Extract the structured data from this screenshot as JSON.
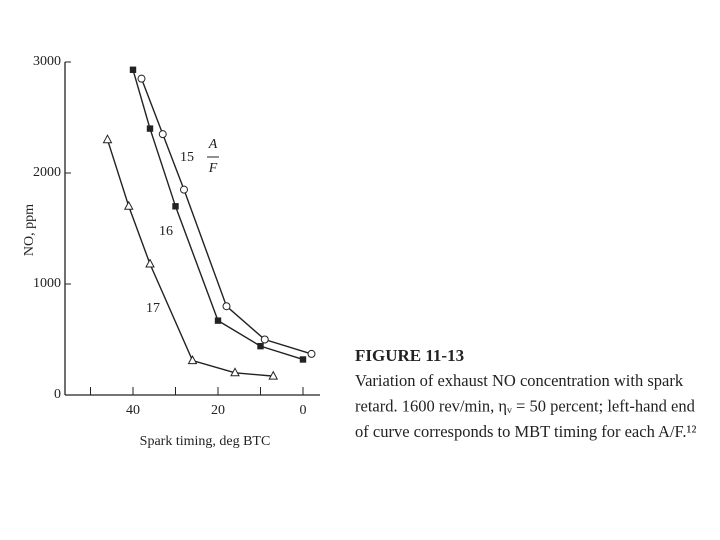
{
  "chart_data": {
    "type": "line",
    "y_label": "NO, ppm",
    "x_label": "Spark timing, deg BTC",
    "xlim": [
      56,
      -4
    ],
    "xticks": [
      40,
      20,
      0
    ],
    "minor_xticks": [
      50,
      30,
      10
    ],
    "ylim": [
      0,
      3000
    ],
    "yticks": [
      0,
      1000,
      2000,
      3000
    ],
    "annotation": {
      "numerator": "A",
      "denominator": "F"
    },
    "series": [
      {
        "name": "15",
        "color": "#222",
        "marker": "open-circle",
        "x": [
          38,
          33,
          28,
          18,
          9,
          -2
        ],
        "values": [
          2850,
          2350,
          1850,
          800,
          500,
          370
        ]
      },
      {
        "name": "16",
        "color": "#222",
        "marker": "filled-square",
        "x": [
          40,
          36,
          30,
          20,
          10,
          0
        ],
        "values": [
          2930,
          2400,
          1700,
          670,
          440,
          320
        ]
      },
      {
        "name": "17",
        "color": "#222",
        "marker": "open-triangle",
        "x": [
          46,
          41,
          36,
          26,
          16,
          7
        ],
        "values": [
          2300,
          1700,
          1180,
          310,
          200,
          170
        ]
      }
    ],
    "caption": {
      "title": "FIGURE 11-13",
      "lines": [
        "Variation of exhaust NO concentration with spark",
        "retard. 1600 rev/min, ηᵥ = 50 percent; left-hand end",
        "of curve corresponds to MBT timing for each A/F.¹²"
      ]
    }
  }
}
